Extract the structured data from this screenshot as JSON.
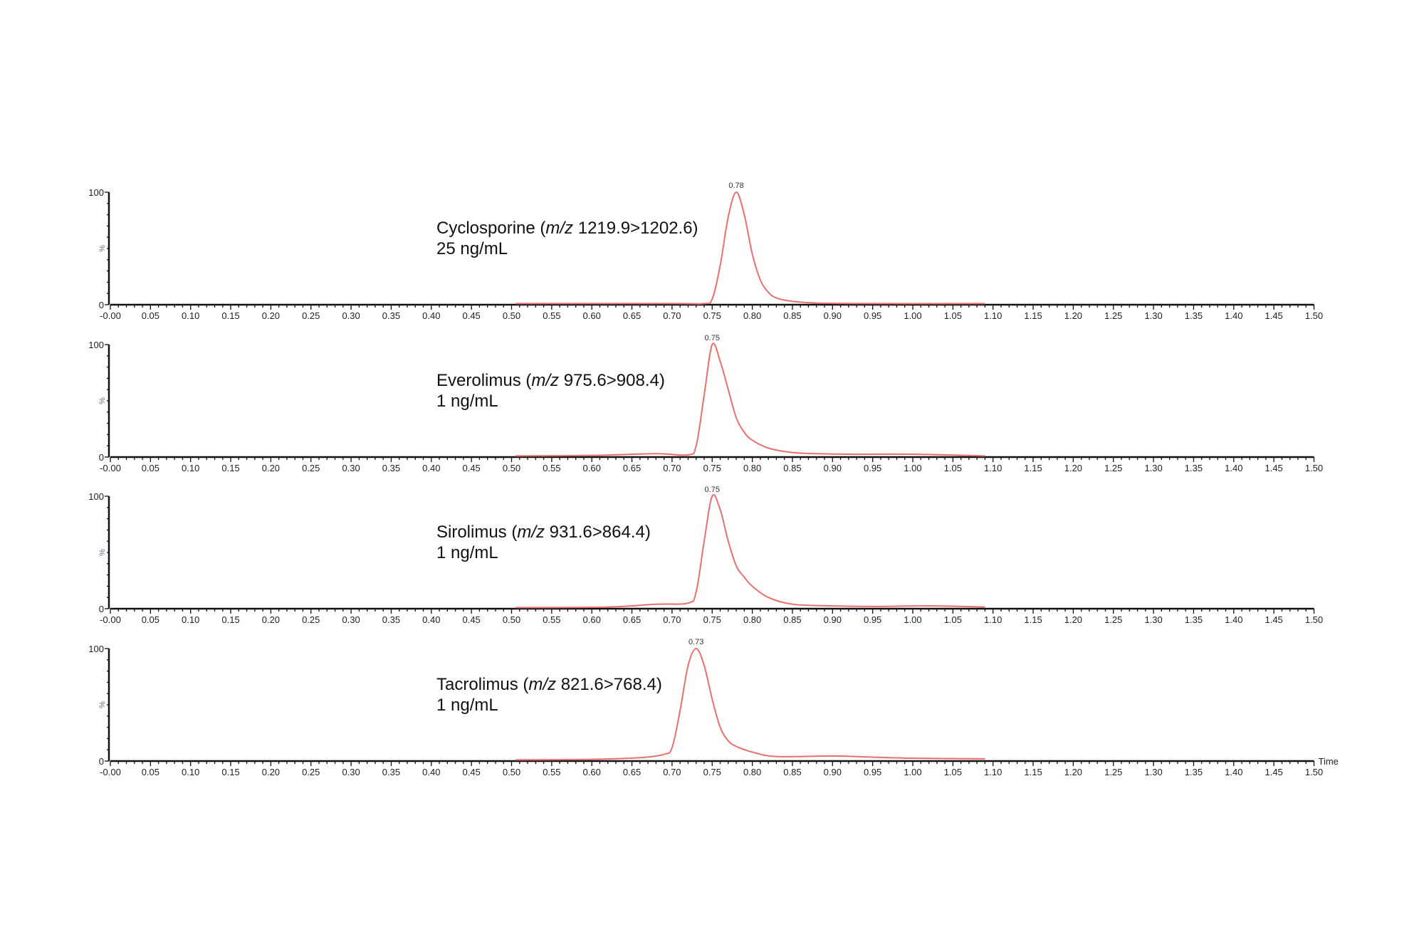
{
  "chart_data": [
    {
      "type": "line",
      "label_prefix": "Cyclosporine (",
      "label_italic": "m/z",
      "label_suffix": " 1219.9>1202.6)",
      "concentration": "25 ng/mL",
      "peak_label": "0.78",
      "peak_time": 0.78,
      "ylabel": "%",
      "y_ticks": [
        "0",
        "100"
      ],
      "ylim": [
        0,
        100
      ],
      "xlim": [
        0,
        1.5
      ],
      "x": [
        0.505,
        0.7,
        0.74,
        0.75,
        0.76,
        0.77,
        0.78,
        0.79,
        0.8,
        0.81,
        0.82,
        0.83,
        0.85,
        0.88,
        0.95,
        1.09
      ],
      "y": [
        1,
        1,
        1,
        5,
        35,
        78,
        100,
        80,
        45,
        22,
        11,
        6,
        3,
        1.5,
        1,
        1
      ]
    },
    {
      "type": "line",
      "label_prefix": "Everolimus (",
      "label_italic": "m/z",
      "label_suffix": " 975.6>908.4)",
      "concentration": "1 ng/mL",
      "peak_label": "0.75",
      "peak_time": 0.75,
      "ylabel": "%",
      "y_ticks": [
        "0",
        "100"
      ],
      "ylim": [
        0,
        100
      ],
      "xlim": [
        0,
        1.5
      ],
      "x": [
        0.505,
        0.6,
        0.68,
        0.72,
        0.73,
        0.74,
        0.75,
        0.76,
        0.77,
        0.78,
        0.79,
        0.8,
        0.82,
        0.85,
        0.88,
        0.92,
        1.0,
        1.09
      ],
      "y": [
        1,
        1.5,
        3,
        2,
        10,
        55,
        100,
        85,
        60,
        35,
        22,
        15,
        8,
        4,
        3,
        2.5,
        2.5,
        1
      ]
    },
    {
      "type": "line",
      "label_prefix": "Sirolimus (",
      "label_italic": "m/z",
      "label_suffix": " 931.6>864.4)",
      "concentration": "1 ng/mL",
      "peak_label": "0.75",
      "peak_time": 0.75,
      "ylabel": "%",
      "y_ticks": [
        "0",
        "100"
      ],
      "ylim": [
        0,
        100
      ],
      "xlim": [
        0,
        1.5
      ],
      "x": [
        0.505,
        0.62,
        0.68,
        0.72,
        0.73,
        0.74,
        0.75,
        0.76,
        0.77,
        0.78,
        0.79,
        0.8,
        0.82,
        0.85,
        0.9,
        0.95,
        1.02,
        1.09
      ],
      "y": [
        1,
        1.5,
        4,
        5,
        15,
        60,
        100,
        88,
        60,
        38,
        28,
        20,
        10,
        4,
        2.5,
        2,
        2.5,
        1.5
      ]
    },
    {
      "type": "line",
      "label_prefix": "Tacrolimus (",
      "label_italic": "m/z",
      "label_suffix": " 821.6>768.4)",
      "concentration": "1 ng/mL",
      "peak_label": "0.73",
      "peak_time": 0.73,
      "ylabel": "%",
      "y_ticks": [
        "0",
        "100"
      ],
      "ylim": [
        0,
        100
      ],
      "xlim": [
        0,
        1.5
      ],
      "xlabel": "Time",
      "x": [
        0.505,
        0.6,
        0.66,
        0.69,
        0.7,
        0.71,
        0.72,
        0.73,
        0.74,
        0.75,
        0.76,
        0.77,
        0.78,
        0.8,
        0.83,
        0.9,
        0.95,
        1.0,
        1.09
      ],
      "y": [
        1,
        1.5,
        3,
        6,
        12,
        45,
        85,
        100,
        85,
        55,
        30,
        18,
        13,
        8,
        4,
        4.5,
        3.5,
        2.5,
        2
      ]
    }
  ],
  "x_tick_labels": [
    "-0.00",
    "0.05",
    "0.10",
    "0.15",
    "0.20",
    "0.25",
    "0.30",
    "0.35",
    "0.40",
    "0.45",
    "0.50",
    "0.55",
    "0.60",
    "0.65",
    "0.70",
    "0.75",
    "0.80",
    "0.85",
    "0.90",
    "0.95",
    "1.00",
    "1.05",
    "1.10",
    "1.15",
    "1.20",
    "1.25",
    "1.30",
    "1.35",
    "1.40",
    "1.45",
    "1.50"
  ],
  "colors": {
    "trace": "#e8706f",
    "axis": "#111111",
    "ylabel": "#6a6a8a"
  }
}
